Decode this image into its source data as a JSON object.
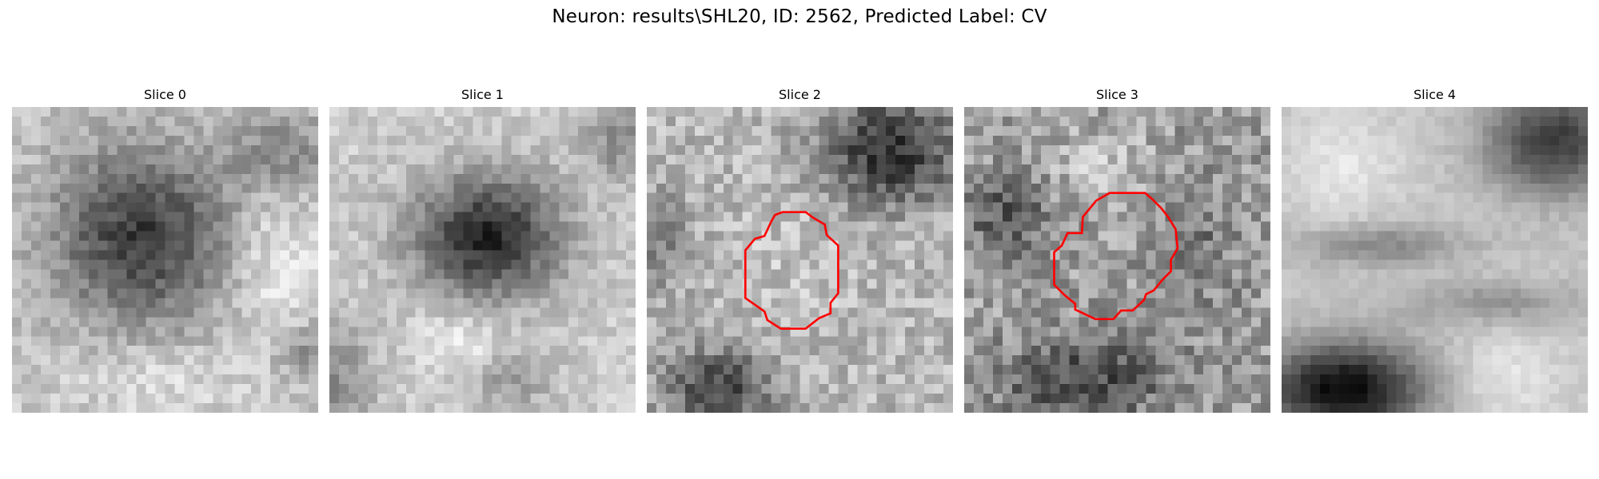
{
  "figure": {
    "title": "Neuron: results\\SHL20, ID: 2562, Predicted Label: CV"
  },
  "panels": [
    {
      "title": "Slice 0",
      "has_contour": false
    },
    {
      "title": "Slice 1",
      "has_contour": false
    },
    {
      "title": "Slice 2",
      "has_contour": true
    },
    {
      "title": "Slice 3",
      "has_contour": true
    },
    {
      "title": "Slice 4",
      "has_contour": false
    }
  ],
  "colors": {
    "contour": "#ff0000",
    "colormap": "grayscale"
  }
}
